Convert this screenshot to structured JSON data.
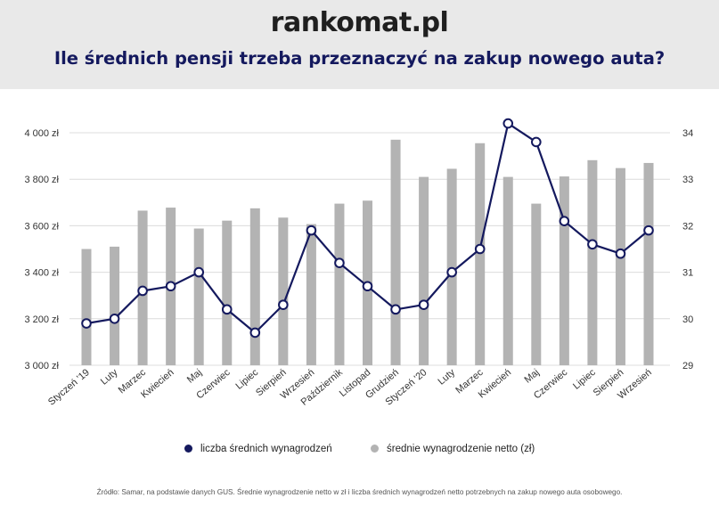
{
  "brand": {
    "logo_text": "rankomat.pl"
  },
  "title": "Ile średnich pensji trzeba przeznaczyć na zakup nowego auta?",
  "colors": {
    "line": "#14195e",
    "bar": "#b3b3b3",
    "title": "#14195e"
  },
  "legend": {
    "line_label": "liczba średnich wynagrodzeń",
    "bar_label": "średnie wynagrodzenie netto (zł)"
  },
  "source": "Źródło: Samar, na podstawie danych GUS. Średnie wynagrodzenie netto w zł i liczba średnich wynagrodzeń netto potrzebnych na zakup nowego auta osobowego.",
  "chart_data": {
    "type": "bar",
    "categories": [
      "Styczeń '19",
      "Luty",
      "Marzec",
      "Kwiecień",
      "Maj",
      "Czerwiec",
      "Lipiec",
      "Sierpień",
      "Wrzesień",
      "Październik",
      "Listopad",
      "Grudzień",
      "Styczeń '20",
      "Luty",
      "Marzec",
      "Kwiecień",
      "Maj",
      "Czerwiec",
      "Lipiec",
      "Sierpień",
      "Wrzesień"
    ],
    "series": [
      {
        "name": "średnie wynagrodzenie netto (zł)",
        "type": "bar",
        "axis": "left",
        "values": [
          3500,
          3510,
          3665,
          3678,
          3588,
          3622,
          3675,
          3635,
          3607,
          3695,
          3708,
          3970,
          3810,
          3845,
          3955,
          3810,
          3695,
          3812,
          3882,
          3848,
          3870
        ]
      },
      {
        "name": "liczba średnich wynagrodzeń",
        "type": "line",
        "axis": "right",
        "values": [
          29.9,
          30.0,
          30.6,
          30.7,
          31.0,
          30.2,
          29.7,
          30.3,
          31.9,
          31.2,
          30.7,
          30.2,
          30.3,
          31.0,
          31.5,
          34.2,
          33.8,
          32.1,
          31.6,
          31.4,
          31.9
        ]
      }
    ],
    "y_left": {
      "min": 3000,
      "max": 4000,
      "ticks": [
        "3 000 zł",
        "3 200 zł",
        "3 400 zł",
        "3 600 zł",
        "3 800 zł",
        "4 000 zł"
      ]
    },
    "y_right": {
      "min": 29,
      "max": 34,
      "ticks": [
        "29",
        "30",
        "31",
        "32",
        "33",
        "34"
      ]
    },
    "grid": true,
    "legend_position": "bottom"
  }
}
